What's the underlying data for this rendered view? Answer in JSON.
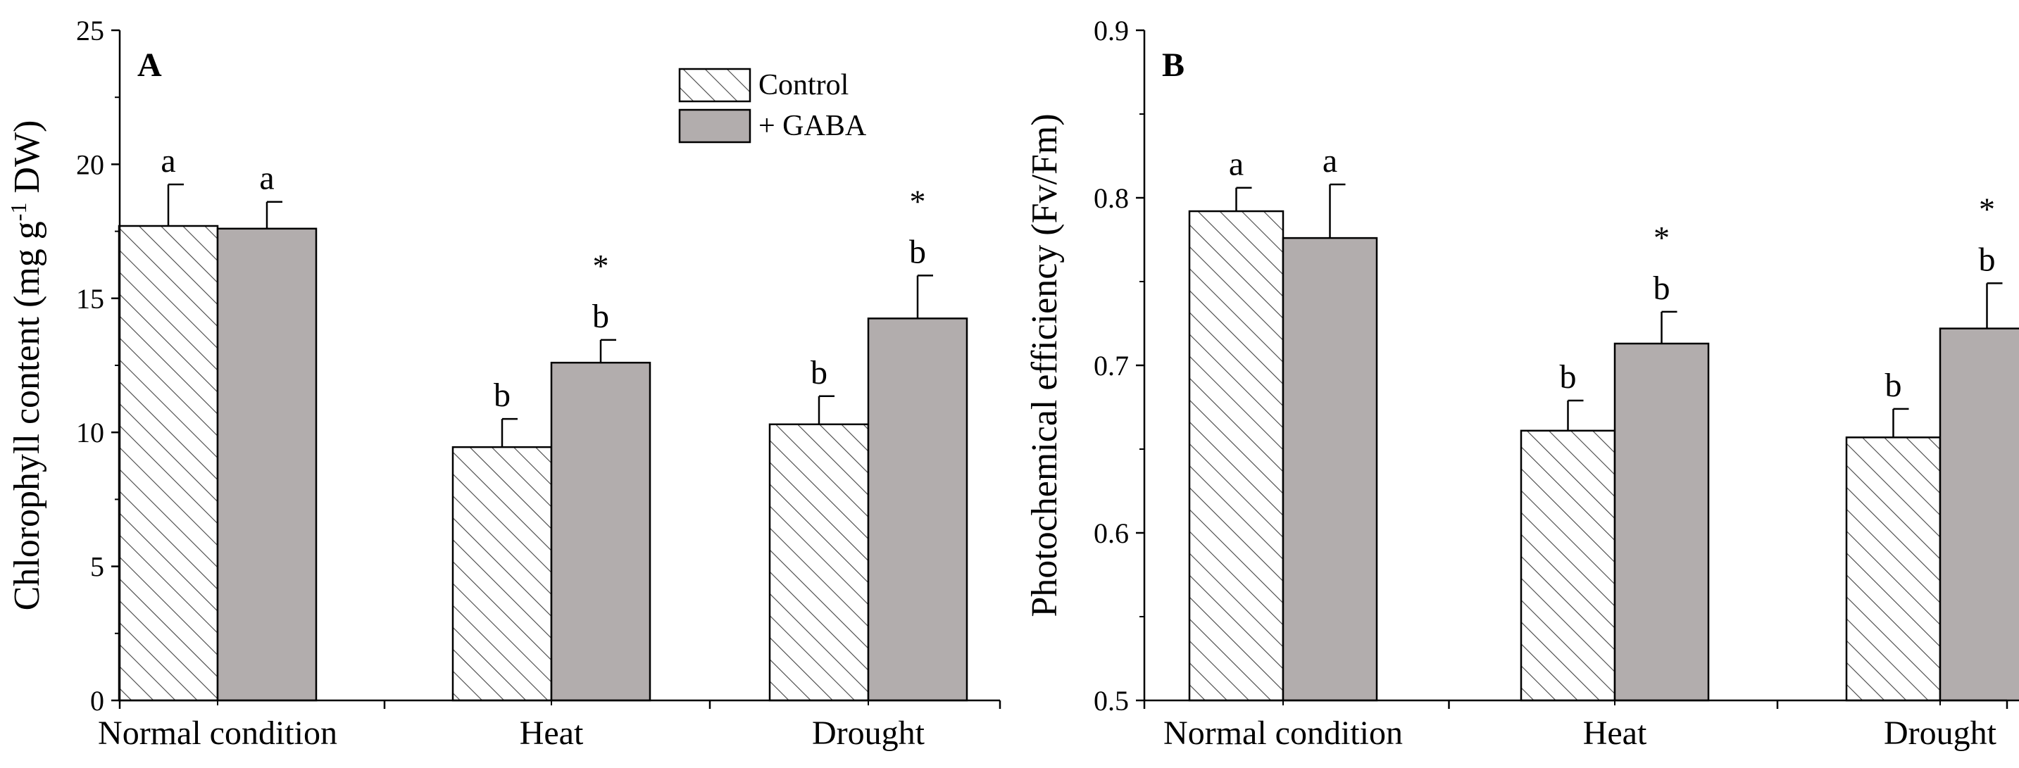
{
  "chart_data": [
    {
      "type": "bar",
      "panel_label": "A",
      "categories": [
        "Normal condition",
        "Heat",
        "Drought"
      ],
      "series": [
        {
          "name": "Control",
          "pattern": "hatched",
          "values": [
            17.7,
            9.45,
            10.3
          ],
          "errors": [
            1.55,
            1.05,
            1.05
          ],
          "letters": [
            "a",
            "b",
            "b"
          ],
          "stars": [
            "",
            "",
            ""
          ]
        },
        {
          "name": "+ GABA",
          "pattern": "solid",
          "values": [
            17.6,
            12.6,
            14.25
          ],
          "errors": [
            1.0,
            0.85,
            1.6
          ],
          "letters": [
            "a",
            "b",
            "b"
          ],
          "stars": [
            "",
            "*",
            "*"
          ]
        }
      ],
      "ylabel_main": "Chlorophyll content (mg g",
      "ylabel_sup": "-1",
      "ylabel_end": " DW)",
      "ylim": [
        0,
        25
      ],
      "yticks": [
        0,
        5,
        10,
        15,
        20,
        25
      ],
      "legend": [
        "Control",
        "+ GABA"
      ],
      "legend_position": "top-center"
    },
    {
      "type": "bar",
      "panel_label": "B",
      "categories": [
        "Normal condition",
        "Heat",
        "Drought"
      ],
      "series": [
        {
          "name": "Control",
          "pattern": "hatched",
          "values": [
            0.792,
            0.661,
            0.657
          ],
          "errors": [
            0.014,
            0.018,
            0.017
          ],
          "letters": [
            "a",
            "b",
            "b"
          ],
          "stars": [
            "",
            "",
            ""
          ]
        },
        {
          "name": "+ GABA",
          "pattern": "solid",
          "values": [
            0.776,
            0.713,
            0.722
          ],
          "errors": [
            0.032,
            0.019,
            0.027
          ],
          "letters": [
            "a",
            "b",
            "b"
          ],
          "stars": [
            "",
            "*",
            "*"
          ]
        }
      ],
      "ylabel_main": "Photochemical efficiency (Fv/Fm)",
      "ylabel_sup": "",
      "ylabel_end": "",
      "ylim": [
        0.5,
        0.9
      ],
      "yticks": [
        0.5,
        0.6,
        0.7,
        0.8,
        0.9
      ],
      "legend": [],
      "legend_position": ""
    }
  ],
  "colors": {
    "gaba_fill": "#b2adad",
    "hatch": "#444444",
    "axis": "#000000"
  }
}
